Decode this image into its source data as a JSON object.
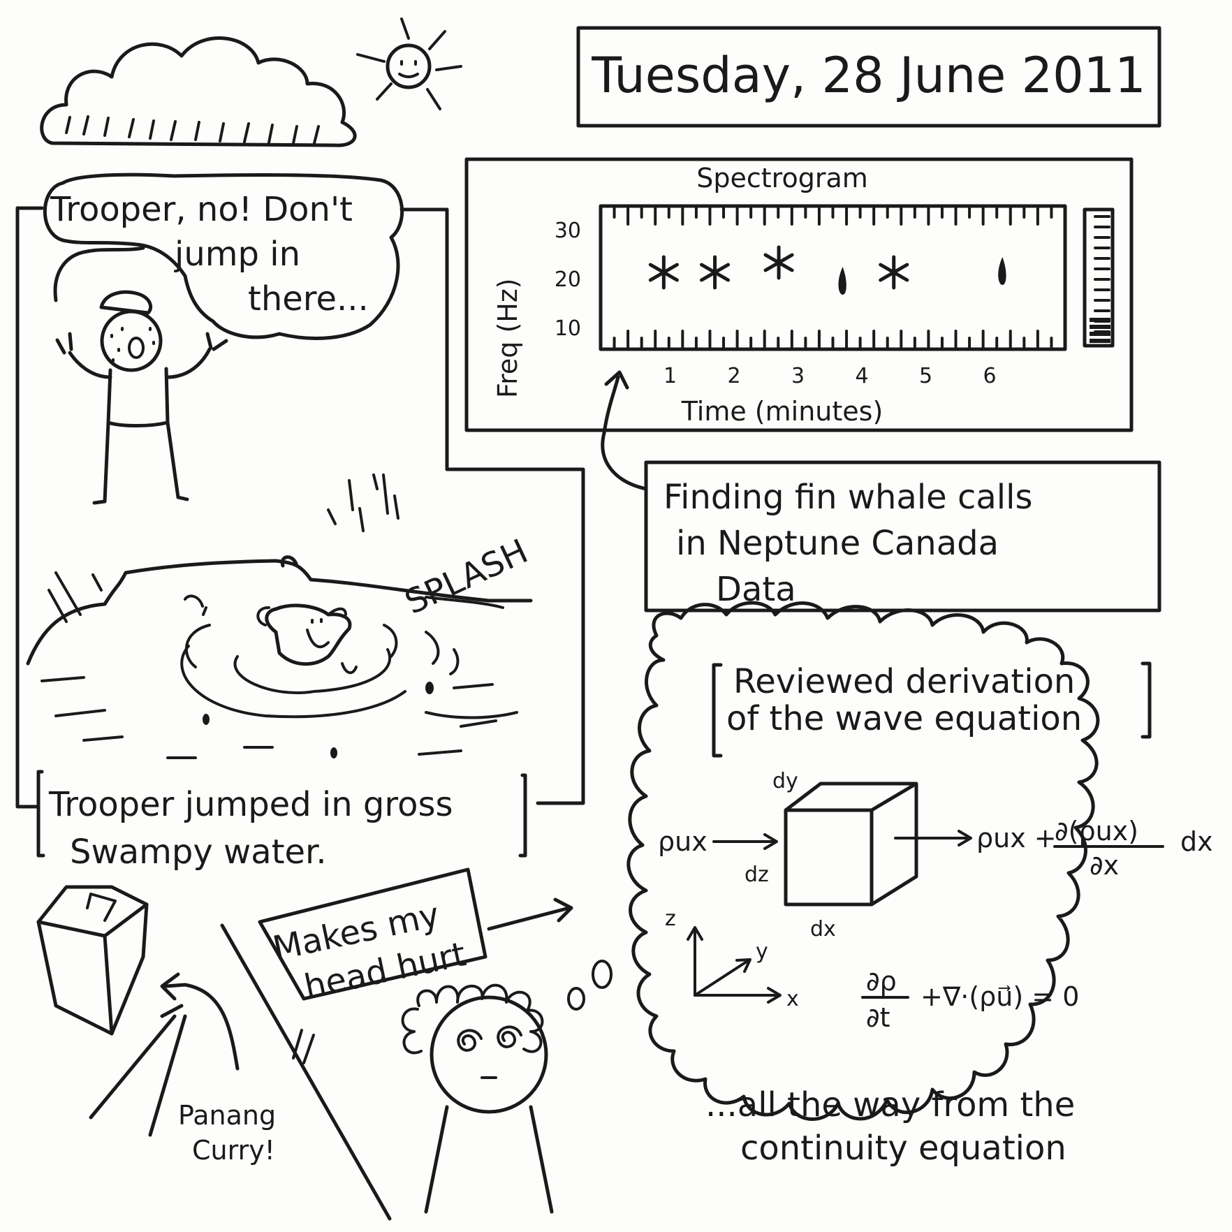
{
  "date_title": "Tuesday, 28 June 2011",
  "spectrogram": {
    "title": "Spectrogram",
    "ylabel": "Freq (Hz)",
    "xlabel": "Time (minutes)",
    "y_ticks": [
      "30",
      "20",
      "10"
    ],
    "x_ticks": [
      "1",
      "2",
      "3",
      "4",
      "5",
      "6"
    ],
    "calls": [
      {
        "time_min": 0.9,
        "freq_hz": 20,
        "mark": "*"
      },
      {
        "time_min": 1.7,
        "freq_hz": 20,
        "mark": "*"
      },
      {
        "time_min": 2.7,
        "freq_hz": 22,
        "mark": "*"
      },
      {
        "time_min": 3.7,
        "freq_hz": 18,
        "mark": "drop"
      },
      {
        "time_min": 4.5,
        "freq_hz": 20,
        "mark": "*"
      },
      {
        "time_min": 6.2,
        "freq_hz": 20,
        "mark": "drop"
      }
    ]
  },
  "whale_caption": {
    "line1": "Finding fin whale calls",
    "line2": "in Neptune Canada",
    "line3": "Data"
  },
  "speech": {
    "line1": "Trooper, no! Don't",
    "line2": "jump in",
    "line3": "there..."
  },
  "splash_text": "SPLASH",
  "swamp_caption": {
    "line1": "Trooper jumped in gross",
    "line2": "Swampy water."
  },
  "head_hurt": {
    "line1": "Makes my",
    "line2": "head hurt"
  },
  "curry": {
    "line1": "Panang",
    "line2": "Curry!"
  },
  "wave": {
    "caption_line1": "Reviewed derivation",
    "caption_line2": "of the wave equation",
    "label_dy": "dy",
    "label_dz": "dz",
    "label_dx": "dx",
    "in_flux": "ρux",
    "out_flux": "ρux +",
    "out_num": "∂(ρux)",
    "out_den": "∂x",
    "out_tail": "dx",
    "axis_z": "z",
    "axis_y": "y",
    "axis_x": "x",
    "eq_num": "∂ρ",
    "eq_den": "∂t",
    "eq_rest": "+∇·(ρu⃗) = 0",
    "bottom_line1": "...all the way from the",
    "bottom_line2": "continuity equation"
  }
}
